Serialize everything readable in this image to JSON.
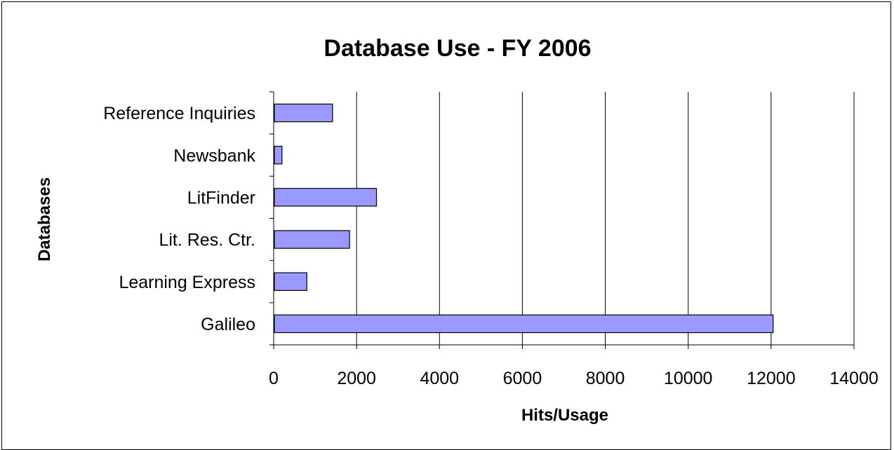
{
  "chart_data": {
    "type": "bar",
    "orientation": "horizontal",
    "title": "Database Use - FY 2006",
    "xlabel": "Hits/Usage",
    "ylabel": "Databases",
    "categories": [
      "Galileo",
      "Learning Express",
      "Lit. Res. Ctr.",
      "LitFinder",
      "Newsbank",
      "Reference Inquiries"
    ],
    "values": [
      12050,
      800,
      1830,
      2480,
      200,
      1420
    ],
    "xlim": [
      0,
      14000
    ],
    "xticks": [
      0,
      2000,
      4000,
      6000,
      8000,
      10000,
      12000,
      14000
    ],
    "xtick_labels": [
      "0",
      "2000",
      "4000",
      "6000",
      "8000",
      "10000",
      "12000",
      "14000"
    ],
    "grid": "vertical",
    "legend": "none",
    "colors": {
      "bar_fill": "#9999ff",
      "bar_stroke": "#000000",
      "grid": "#000000"
    }
  }
}
